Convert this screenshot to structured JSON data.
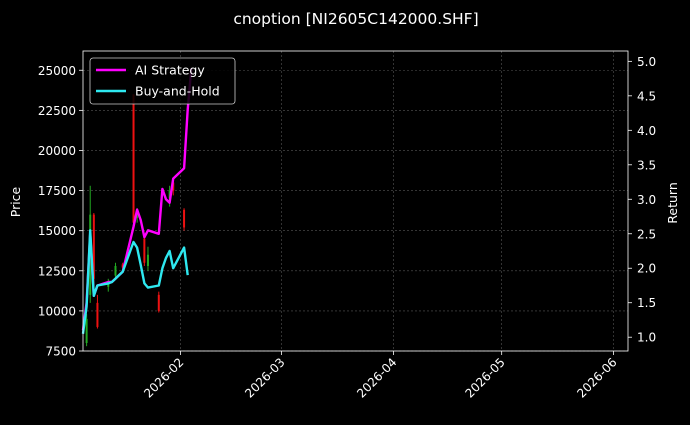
{
  "chart_data": {
    "type": "line",
    "title": "cnoption [NI2605C142000.SHF]",
    "ylabel_left": "Price",
    "ylabel_right": "Return",
    "ylim_left": [
      7500,
      26200
    ],
    "ylim_right": [
      0.8,
      5.15
    ],
    "xlim": [
      "2026-01-05",
      "2026-06-05"
    ],
    "x_ticks": [
      "2026-02",
      "2026-03",
      "2026-04",
      "2026-05",
      "2026-06"
    ],
    "x_tick_dates": [
      "2026-02-01",
      "2026-03-01",
      "2026-04-01",
      "2026-05-01",
      "2026-06-01"
    ],
    "y_ticks_left": [
      7500,
      10000,
      12500,
      15000,
      17500,
      20000,
      22500,
      25000
    ],
    "y_ticks_right": [
      1.0,
      1.5,
      2.0,
      2.5,
      3.0,
      3.5,
      4.0,
      4.5,
      5.0
    ],
    "grid": true,
    "legend_position": "top-left",
    "series": [
      {
        "name": "AI Strategy",
        "axis": "right",
        "color": "#ff00ff",
        "points": [
          [
            "2026-01-05",
            1.1
          ],
          [
            "2026-01-06",
            1.5
          ],
          [
            "2026-01-07",
            2.5
          ],
          [
            "2026-01-08",
            1.6
          ],
          [
            "2026-01-09",
            1.75
          ],
          [
            "2026-01-12",
            1.8
          ],
          [
            "2026-01-13",
            1.8
          ],
          [
            "2026-01-14",
            1.85
          ],
          [
            "2026-01-15",
            1.9
          ],
          [
            "2026-01-16",
            1.95
          ],
          [
            "2026-01-19",
            2.6
          ],
          [
            "2026-01-20",
            2.85
          ],
          [
            "2026-01-21",
            2.7
          ],
          [
            "2026-01-22",
            2.45
          ],
          [
            "2026-01-23",
            2.55
          ],
          [
            "2026-01-26",
            2.5
          ],
          [
            "2026-01-27",
            3.15
          ],
          [
            "2026-01-28",
            3.0
          ],
          [
            "2026-01-29",
            2.95
          ],
          [
            "2026-01-30",
            3.3
          ],
          [
            "2026-02-02",
            3.45
          ],
          [
            "2026-02-03",
            4.3
          ],
          [
            "2026-02-04",
            4.9
          ]
        ]
      },
      {
        "name": "Buy-and-Hold",
        "axis": "right",
        "color": "#2ee8f0",
        "points": [
          [
            "2026-01-05",
            1.05
          ],
          [
            "2026-01-06",
            1.45
          ],
          [
            "2026-01-07",
            2.55
          ],
          [
            "2026-01-08",
            1.6
          ],
          [
            "2026-01-09",
            1.75
          ],
          [
            "2026-01-12",
            1.78
          ],
          [
            "2026-01-13",
            1.8
          ],
          [
            "2026-01-14",
            1.85
          ],
          [
            "2026-01-15",
            1.9
          ],
          [
            "2026-01-16",
            1.95
          ],
          [
            "2026-01-19",
            2.38
          ],
          [
            "2026-01-20",
            2.3
          ],
          [
            "2026-01-21",
            2.05
          ],
          [
            "2026-01-22",
            1.78
          ],
          [
            "2026-01-23",
            1.72
          ],
          [
            "2026-01-26",
            1.75
          ],
          [
            "2026-01-27",
            2.0
          ],
          [
            "2026-01-28",
            2.15
          ],
          [
            "2026-01-29",
            2.25
          ],
          [
            "2026-01-30",
            2.0
          ],
          [
            "2026-02-02",
            2.3
          ],
          [
            "2026-02-03",
            1.9
          ]
        ]
      }
    ],
    "candles": {
      "axis": "left",
      "up_color": "#22aa22",
      "down_color": "#ee1111",
      "items": [
        [
          "2026-01-06",
          8000,
          9500,
          7800,
          9800
        ],
        [
          "2026-01-07",
          11000,
          16000,
          10500,
          17800
        ],
        [
          "2026-01-08",
          16000,
          12000,
          11500,
          16100
        ],
        [
          "2026-01-09",
          10500,
          9000,
          8900,
          11000
        ],
        [
          "2026-01-12",
          11500,
          11800,
          11200,
          12000
        ],
        [
          "2026-01-14",
          12200,
          12800,
          12000,
          13000
        ],
        [
          "2026-01-16",
          12900,
          12700,
          12500,
          13000
        ],
        [
          "2026-01-19",
          23500,
          15500,
          15000,
          23500
        ],
        [
          "2026-01-20",
          15800,
          16200,
          15500,
          16400
        ],
        [
          "2026-01-22",
          14500,
          13000,
          12800,
          14800
        ],
        [
          "2026-01-23",
          12800,
          13500,
          12500,
          14000
        ],
        [
          "2026-01-26",
          11000,
          10000,
          9900,
          11200
        ],
        [
          "2026-01-29",
          17000,
          17500,
          16500,
          17800
        ],
        [
          "2026-01-30",
          18000,
          17500,
          17200,
          18200
        ],
        [
          "2026-02-02",
          16300,
          15200,
          15000,
          16400
        ]
      ]
    }
  }
}
